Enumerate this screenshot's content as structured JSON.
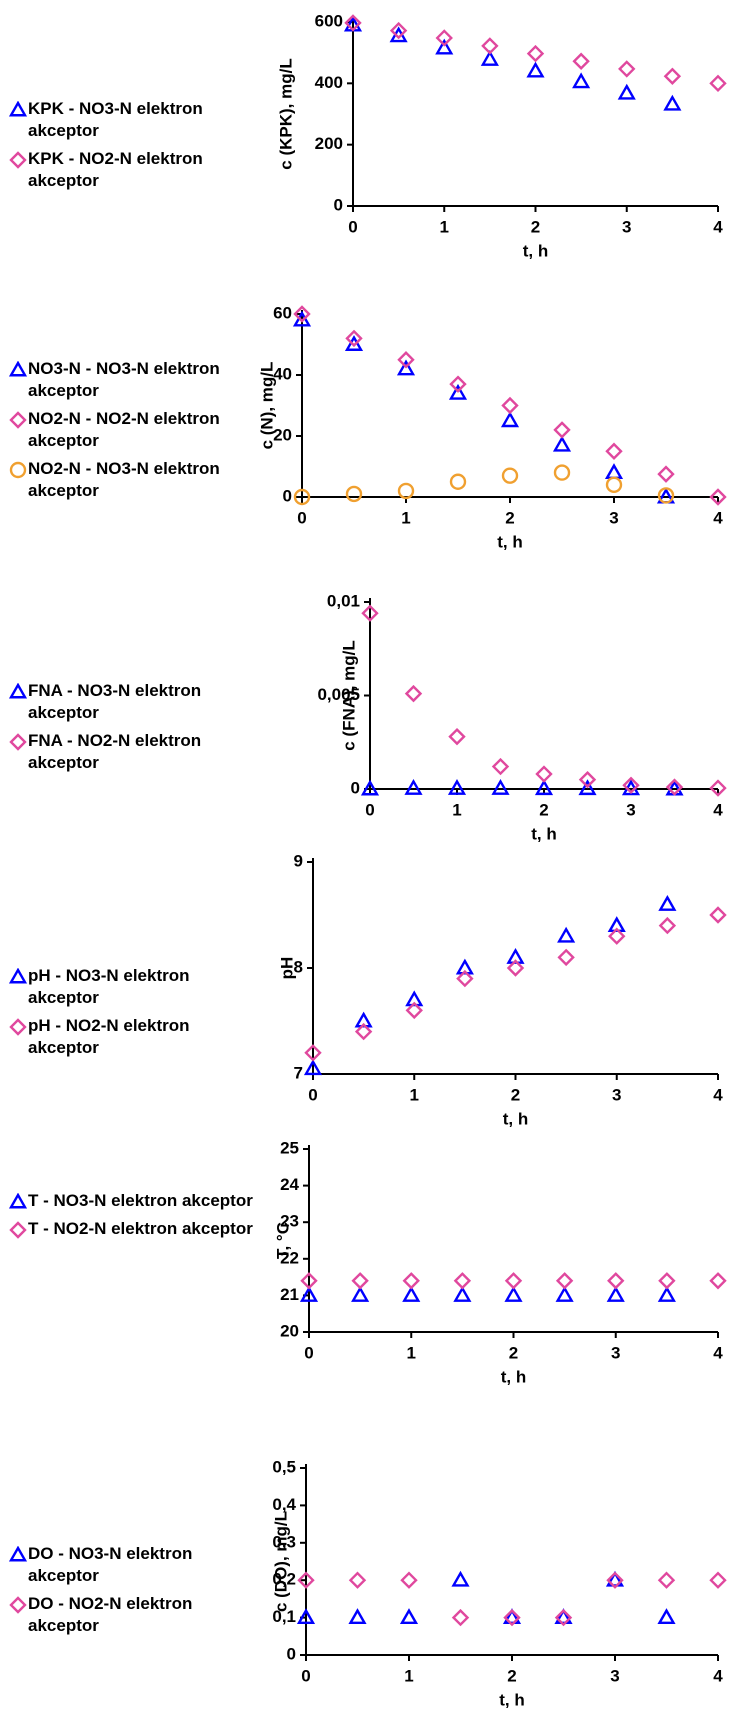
{
  "chart_data": [
    {
      "type": "scatter",
      "ylabel": "c (KPK), mg/L",
      "xlabel": "t, h",
      "x": [
        0,
        0.5,
        1,
        1.5,
        2,
        2.5,
        3,
        3.5,
        4
      ],
      "xlim": [
        0,
        4
      ],
      "xticks": [
        0,
        1,
        2,
        3,
        4
      ],
      "ylim": [
        0,
        600
      ],
      "yticks": [
        0,
        200,
        400,
        600
      ],
      "series": [
        {
          "name": "KPK - NO3-N elektron akceptor",
          "color": "#0000ff",
          "marker": "triangle",
          "values": [
            590,
            555,
            515,
            478,
            440,
            405,
            368,
            332,
            null
          ]
        },
        {
          "name": "KPK - NO2-N elektron akceptor",
          "color": "#e0489e",
          "marker": "diamond",
          "values": [
            597,
            572,
            548,
            522,
            497,
            472,
            447,
            423,
            400
          ]
        }
      ]
    },
    {
      "type": "scatter",
      "ylabel": "c (N), mg/L",
      "xlabel": "t, h",
      "x": [
        0,
        0.5,
        1,
        1.5,
        2,
        2.5,
        3,
        3.5,
        4
      ],
      "xlim": [
        0,
        4
      ],
      "xticks": [
        0,
        1,
        2,
        3,
        4
      ],
      "ylim": [
        0,
        60
      ],
      "yticks": [
        0,
        20,
        40,
        60
      ],
      "series": [
        {
          "name": "NO3-N - NO3-N elektron akceptor",
          "color": "#0000ff",
          "marker": "triangle",
          "values": [
            58,
            50,
            42,
            34,
            25,
            17,
            8,
            0,
            null
          ]
        },
        {
          "name": "NO2-N - NO2-N elektron akceptor",
          "color": "#e0489e",
          "marker": "diamond",
          "values": [
            60,
            52,
            45,
            37,
            30,
            22,
            15,
            7.5,
            0
          ]
        },
        {
          "name": "NO2-N - NO3-N elektron akceptor",
          "color": "#f0a030",
          "marker": "circle",
          "values": [
            0,
            1,
            2,
            5,
            7,
            8,
            4,
            0.5,
            null
          ]
        }
      ]
    },
    {
      "type": "scatter",
      "ylabel": "c (FNA), mg/L",
      "xlabel": "t, h",
      "x": [
        0,
        0.5,
        1,
        1.5,
        2,
        2.5,
        3,
        3.5,
        4
      ],
      "xlim": [
        0,
        4
      ],
      "xticks": [
        0,
        1,
        2,
        3,
        4
      ],
      "ylim": [
        0,
        0.01
      ],
      "yticks": [
        0,
        {
          "value": 0.005,
          "label": "0,005"
        },
        {
          "value": 0.01,
          "label": "0,01"
        }
      ],
      "series": [
        {
          "name": "FNA - NO3-N elektron akceptor",
          "color": "#0000ff",
          "marker": "triangle",
          "values": [
            0,
            3e-05,
            3e-05,
            3e-05,
            2e-05,
            2e-05,
            1e-05,
            0,
            null
          ]
        },
        {
          "name": "FNA - NO2-N elektron akceptor",
          "color": "#e0489e",
          "marker": "diamond",
          "values": [
            0.0094,
            0.0051,
            0.0028,
            0.0012,
            0.0008,
            0.0005,
            0.0002,
            0.0001,
            5e-05
          ]
        }
      ]
    },
    {
      "type": "scatter",
      "ylabel": "pH",
      "xlabel": "t, h",
      "x": [
        0,
        0.5,
        1,
        1.5,
        2,
        2.5,
        3,
        3.5,
        4
      ],
      "xlim": [
        0,
        4
      ],
      "xticks": [
        0,
        1,
        2,
        3,
        4
      ],
      "ylim": [
        7,
        9
      ],
      "yticks": [
        7,
        8,
        9
      ],
      "series": [
        {
          "name": "pH - NO3-N elektron akceptor",
          "color": "#0000ff",
          "marker": "triangle",
          "values": [
            7.05,
            7.5,
            7.7,
            8.0,
            8.1,
            8.3,
            8.4,
            8.6,
            null
          ]
        },
        {
          "name": "pH - NO2-N elektron akceptor",
          "color": "#e0489e",
          "marker": "diamond",
          "values": [
            7.2,
            7.4,
            7.6,
            7.9,
            8.0,
            8.1,
            8.3,
            8.4,
            8.5
          ]
        }
      ]
    },
    {
      "type": "scatter",
      "ylabel": "T, °C",
      "xlabel": "t, h",
      "x": [
        0,
        0.5,
        1,
        1.5,
        2,
        2.5,
        3,
        3.5,
        4
      ],
      "xlim": [
        0,
        4
      ],
      "xticks": [
        0,
        1,
        2,
        3,
        4
      ],
      "ylim": [
        20,
        25
      ],
      "yticks": [
        20,
        21,
        22,
        23,
        24,
        25
      ],
      "series": [
        {
          "name": "T - NO3-N elektron akceptor",
          "color": "#0000ff",
          "marker": "triangle",
          "values": [
            21,
            21,
            21,
            21,
            21,
            21,
            21,
            21,
            null
          ]
        },
        {
          "name": "T - NO2-N elektron akceptor",
          "color": "#e0489e",
          "marker": "diamond",
          "values": [
            21.4,
            21.4,
            21.4,
            21.4,
            21.4,
            21.4,
            21.4,
            21.4,
            21.4
          ]
        }
      ]
    },
    {
      "type": "scatter",
      "ylabel": "c (DO), mg/L",
      "xlabel": "t, h",
      "x": [
        0,
        0.5,
        1,
        1.5,
        2,
        2.5,
        3,
        3.5,
        4
      ],
      "xlim": [
        0,
        4
      ],
      "xticks": [
        0,
        1,
        2,
        3,
        4
      ],
      "ylim": [
        0,
        0.5
      ],
      "yticks": [
        0,
        {
          "value": 0.1,
          "label": "0,1"
        },
        {
          "value": 0.2,
          "label": "0,2"
        },
        {
          "value": 0.3,
          "label": "0,3"
        },
        {
          "value": 0.4,
          "label": "0,4"
        },
        {
          "value": 0.5,
          "label": "0,5"
        }
      ],
      "series": [
        {
          "name": "DO - NO3-N elektron akceptor",
          "color": "#0000ff",
          "marker": "triangle",
          "values": [
            0.1,
            0.1,
            0.1,
            0.2,
            0.1,
            0.1,
            0.2,
            0.1,
            null
          ]
        },
        {
          "name": "DO - NO2-N elektron akceptor",
          "color": "#e0489e",
          "marker": "diamond",
          "values": [
            0.2,
            0.2,
            0.2,
            0.1,
            0.1,
            0.1,
            0.2,
            0.2,
            0.2
          ]
        }
      ]
    }
  ]
}
